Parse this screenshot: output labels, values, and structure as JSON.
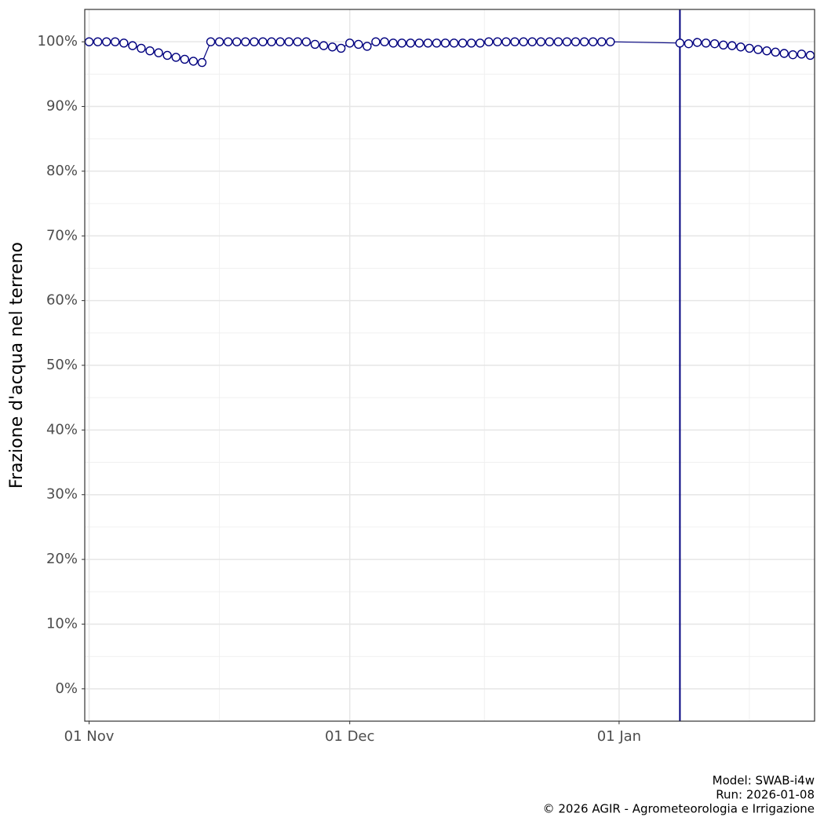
{
  "chart_data": {
    "type": "line",
    "y_label": "Frazione d'acqua nel terreno",
    "caption": [
      "Model: SWAB-i4w",
      "Run: 2026-01-08",
      "© 2026 AGIR - Agrometeorologia e Irrigazione"
    ],
    "x": [
      "01 Nov",
      "02 Nov",
      "03 Nov",
      "04 Nov",
      "05 Nov",
      "06 Nov",
      "07 Nov",
      "08 Nov",
      "09 Nov",
      "10 Nov",
      "11 Nov",
      "12 Nov",
      "13 Nov",
      "14 Nov",
      "15 Nov",
      "16 Nov",
      "17 Nov",
      "18 Nov",
      "19 Nov",
      "20 Nov",
      "21 Nov",
      "22 Nov",
      "23 Nov",
      "24 Nov",
      "25 Nov",
      "26 Nov",
      "27 Nov",
      "28 Nov",
      "29 Nov",
      "30 Nov",
      "01 Dec",
      "02 Dec",
      "03 Dec",
      "04 Dec",
      "05 Dec",
      "06 Dec",
      "07 Dec",
      "08 Dec",
      "09 Dec",
      "10 Dec",
      "11 Dec",
      "12 Dec",
      "13 Dec",
      "14 Dec",
      "15 Dec",
      "16 Dec",
      "17 Dec",
      "18 Dec",
      "19 Dec",
      "20 Dec",
      "21 Dec",
      "22 Dec",
      "23 Dec",
      "24 Dec",
      "25 Dec",
      "26 Dec",
      "27 Dec",
      "28 Dec",
      "29 Dec",
      "30 Dec",
      "31 Dec",
      "08 Jan",
      "09 Jan",
      "10 Jan",
      "11 Jan",
      "12 Jan",
      "13 Jan",
      "14 Jan",
      "15 Jan",
      "16 Jan",
      "17 Jan",
      "18 Jan",
      "19 Jan",
      "20 Jan",
      "21 Jan",
      "22 Jan",
      "23 Jan"
    ],
    "series": [
      {
        "name": "Frazione d'acqua",
        "color": "#00007f",
        "values": [
          100,
          100,
          100,
          100,
          99.8,
          99.4,
          99.0,
          98.6,
          98.3,
          97.9,
          97.6,
          97.3,
          97.0,
          96.8,
          100,
          100,
          100,
          100,
          100,
          100,
          100,
          100,
          100,
          100,
          100,
          100,
          99.6,
          99.4,
          99.2,
          99.0,
          99.8,
          99.6,
          99.3,
          100,
          100,
          99.8,
          99.8,
          99.8,
          99.8,
          99.8,
          99.8,
          99.8,
          99.8,
          99.8,
          99.8,
          99.8,
          100,
          100,
          100,
          100,
          100,
          100,
          100,
          100,
          100,
          100,
          100,
          100,
          100,
          100,
          100,
          99.8,
          99.7,
          99.9,
          99.8,
          99.7,
          99.5,
          99.4,
          99.2,
          99.0,
          98.8,
          98.6,
          98.4,
          98.2,
          98.0,
          98.1,
          97.9
        ]
      }
    ],
    "vline": "08 Jan",
    "vline_color": "#00007f",
    "xlim": [
      "01 Nov",
      "23 Jan"
    ],
    "xticks": [
      "01 Nov",
      "01 Dec",
      "01 Jan"
    ],
    "ylim": [
      -5,
      105
    ],
    "yticks": [
      {
        "value": 0,
        "label": "0%"
      },
      {
        "value": 10,
        "label": "10%"
      },
      {
        "value": 20,
        "label": "20%"
      },
      {
        "value": 30,
        "label": "30%"
      },
      {
        "value": 40,
        "label": "40%"
      },
      {
        "value": 50,
        "label": "50%"
      },
      {
        "value": 60,
        "label": "60%"
      },
      {
        "value": 70,
        "label": "70%"
      },
      {
        "value": 80,
        "label": "80%"
      },
      {
        "value": 90,
        "label": "90%"
      },
      {
        "value": 100,
        "label": "100%"
      }
    ],
    "grid": true
  }
}
